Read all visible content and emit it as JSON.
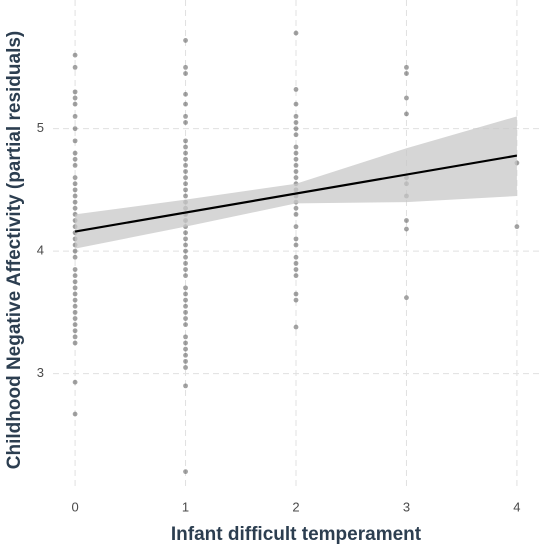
{
  "chart_data": {
    "type": "scatter",
    "xlabel": "Infant difficult temperament",
    "ylabel": "Childhood Negative Affectivity (partial residuals)",
    "xlim": [
      -0.2,
      4.2
    ],
    "xticks": [
      0,
      1,
      2,
      3,
      4
    ],
    "ylim": [
      2.05,
      6.05
    ],
    "yticks": [
      3,
      4,
      5
    ],
    "grid": true,
    "point_color": "#555555",
    "line_color": "#000000",
    "band_color": "#c8c8c8",
    "points": [
      {
        "x": 0,
        "y": [
          5.6,
          5.5,
          5.3,
          5.25,
          5.2,
          5.1,
          5.0,
          4.9,
          4.8,
          4.75,
          4.7,
          4.6,
          4.55,
          4.5,
          4.45,
          4.4,
          4.35,
          4.3,
          4.25,
          4.2,
          4.15,
          4.1,
          4.05,
          4.0,
          3.95,
          3.85,
          3.8,
          3.75,
          3.7,
          3.65,
          3.6,
          3.55,
          3.5,
          3.45,
          3.4,
          3.35,
          3.3,
          3.25,
          2.93,
          2.67
        ]
      },
      {
        "x": 1,
        "y": [
          5.72,
          5.5,
          5.45,
          5.28,
          5.2,
          5.1,
          5.05,
          4.9,
          4.85,
          4.8,
          4.75,
          4.7,
          4.65,
          4.6,
          4.55,
          4.5,
          4.45,
          4.4,
          4.35,
          4.3,
          4.25,
          4.2,
          4.15,
          4.1,
          4.05,
          4.0,
          3.95,
          3.9,
          3.85,
          3.8,
          3.7,
          3.65,
          3.6,
          3.55,
          3.5,
          3.45,
          3.4,
          3.3,
          3.25,
          3.2,
          3.15,
          3.1,
          3.05,
          2.9,
          2.2
        ]
      },
      {
        "x": 2,
        "y": [
          5.78,
          5.32,
          5.2,
          5.1,
          5.05,
          5.0,
          4.95,
          4.85,
          4.8,
          4.75,
          4.7,
          4.65,
          4.6,
          4.55,
          4.5,
          4.45,
          4.4,
          4.35,
          4.3,
          4.2,
          4.1,
          4.05,
          3.95,
          3.9,
          3.85,
          3.8,
          3.65,
          3.6,
          3.38
        ]
      },
      {
        "x": 3,
        "y": [
          5.5,
          5.45,
          5.25,
          5.12,
          4.6,
          4.55,
          4.45,
          4.25,
          4.18,
          3.62
        ]
      },
      {
        "x": 4,
        "y": [
          4.72,
          4.2
        ]
      }
    ],
    "fit": {
      "x": [
        0,
        4
      ],
      "y": [
        4.16,
        4.78
      ]
    },
    "band": {
      "x": [
        0,
        1,
        2,
        3,
        4
      ],
      "lower": [
        4.02,
        4.2,
        4.39,
        4.4,
        4.45
      ],
      "upper": [
        4.3,
        4.42,
        4.55,
        4.84,
        5.1
      ]
    }
  }
}
